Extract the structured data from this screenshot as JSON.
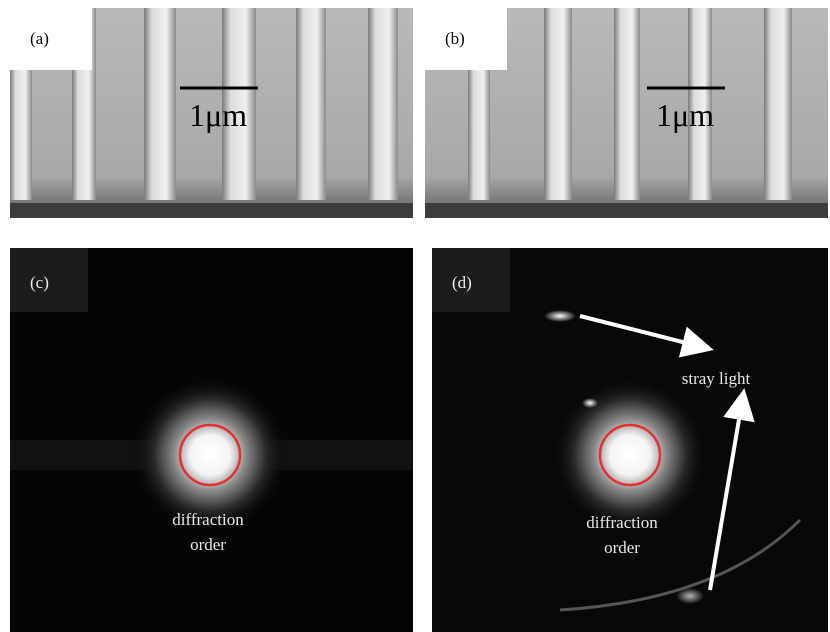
{
  "panels": [
    {
      "label": "(a)",
      "scale_bar": "1μm"
    },
    {
      "label": "(b)",
      "scale_bar": "1μm"
    },
    {
      "label": "(c)",
      "annotation": [
        "diffraction",
        "order"
      ]
    },
    {
      "label": "(d)",
      "annotation": [
        "diffraction",
        "order"
      ],
      "callout": "stray light"
    }
  ]
}
